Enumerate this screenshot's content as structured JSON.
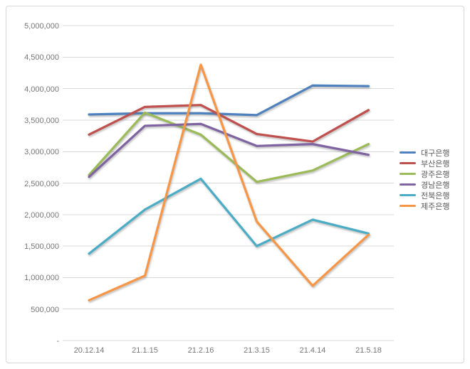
{
  "chart_data": {
    "type": "line",
    "x_labels": [
      "20.12.14",
      "21.1.15",
      "21.2.16",
      "21.3.15",
      "21.4.14",
      "21.5.18"
    ],
    "y_tick_labels": [
      "-",
      "500,000",
      "1,000,000",
      "1,500,000",
      "2,000,000",
      "2,500,000",
      "3,000,000",
      "3,500,000",
      "4,000,000",
      "4,500,000",
      "5,000,000"
    ],
    "ylim": [
      0,
      5000000
    ],
    "y_tick_step": 500000,
    "grid": "horizontal",
    "legend_position": "right",
    "series": [
      {
        "name": "대구은행",
        "color": "#4E81BD",
        "values": [
          3590000,
          3610000,
          3610000,
          3580000,
          4050000,
          4040000
        ]
      },
      {
        "name": "부산은행",
        "color": "#C0504D",
        "values": [
          3270000,
          3710000,
          3740000,
          3280000,
          3160000,
          3660000
        ]
      },
      {
        "name": "광주은행",
        "color": "#9BBB59",
        "values": [
          2630000,
          3620000,
          3270000,
          2520000,
          2700000,
          3120000
        ]
      },
      {
        "name": "경남은행",
        "color": "#8064A2",
        "values": [
          2600000,
          3410000,
          3440000,
          3090000,
          3120000,
          2950000
        ]
      },
      {
        "name": "전북은행",
        "color": "#4BACC6",
        "values": [
          1380000,
          2080000,
          2570000,
          1500000,
          1920000,
          1700000
        ]
      },
      {
        "name": "제주은행",
        "color": "#F79646",
        "values": [
          640000,
          1030000,
          4380000,
          1890000,
          870000,
          1680000
        ]
      }
    ],
    "style": {
      "grid_color": "#d9d9d9",
      "axis_text_color": "#777777",
      "legend_text_color": "#595959",
      "frame_border_color": "#d7d7d7",
      "background": "#ffffff"
    }
  }
}
